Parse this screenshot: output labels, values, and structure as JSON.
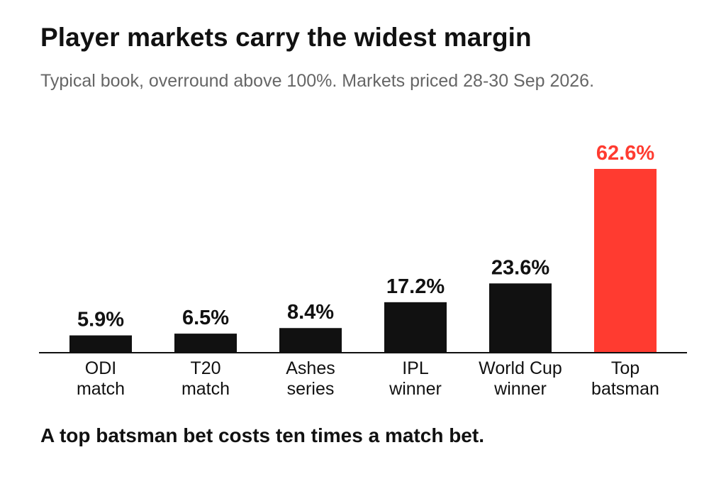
{
  "header": {
    "title": "Player markets carry the widest margin",
    "subtitle": "Typical book, overround above 100%. Markets priced 28-30 Sep 2026."
  },
  "footer": {
    "takeaway": "A top batsman bet costs ten times a match bet."
  },
  "colors": {
    "default_bar": "#111111",
    "highlight_bar": "#ff3b30",
    "axis": "#111111"
  },
  "chart_data": {
    "type": "bar",
    "title": "Player markets carry the widest margin",
    "subtitle": "Typical book, overround above 100%. Markets priced 28-30 Sep 2026.",
    "categories": [
      [
        "ODI",
        "match"
      ],
      [
        "T20",
        "match"
      ],
      [
        "Ashes",
        "series"
      ],
      [
        "IPL",
        "winner"
      ],
      [
        "World Cup",
        "winner"
      ],
      [
        "Top",
        "batsman"
      ]
    ],
    "values": [
      5.9,
      6.5,
      8.4,
      17.2,
      23.6,
      62.6
    ],
    "value_labels": [
      "5.9%",
      "6.5%",
      "8.4%",
      "17.2%",
      "23.6%",
      "62.6%"
    ],
    "highlight_index": 5,
    "xlabel": "",
    "ylabel": "",
    "ylim": [
      0,
      62.6
    ],
    "grid": false,
    "legend": "none"
  }
}
